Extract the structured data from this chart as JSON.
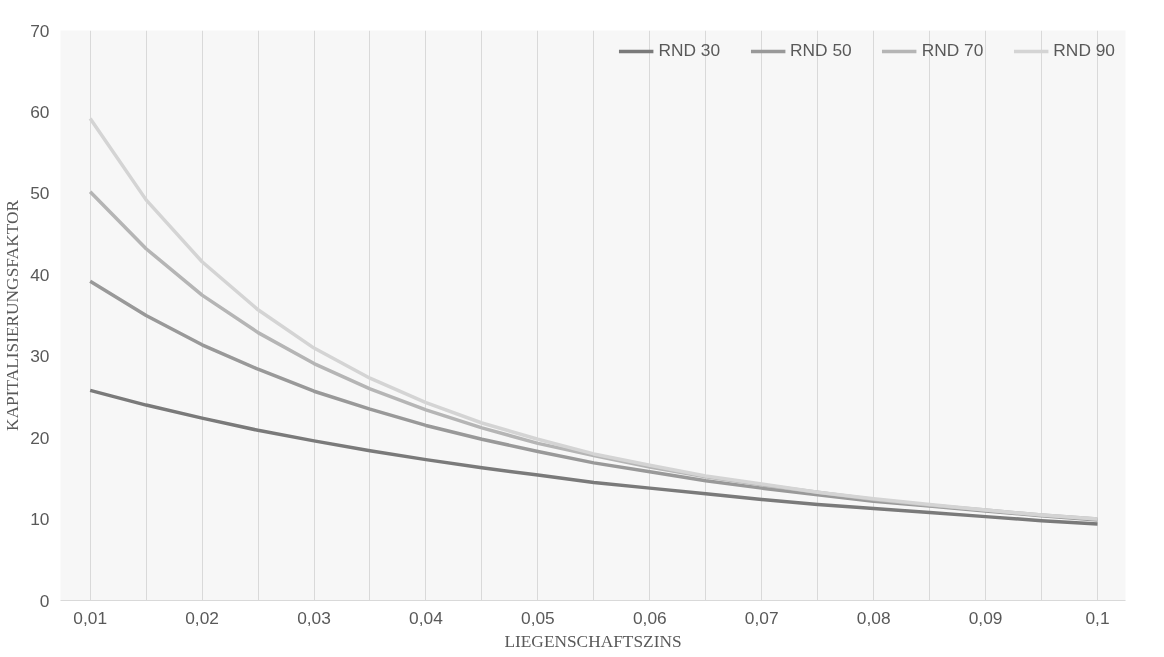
{
  "chart_data": {
    "type": "line",
    "xlabel": "LIEGENSCHAFTSZINS",
    "ylabel": "KAPITALISIERUNGSFAKTOR",
    "categories": [
      "0,01",
      null,
      "0,02",
      null,
      "0,03",
      null,
      "0,04",
      null,
      "0,05",
      null,
      "0,06",
      null,
      "0,07",
      null,
      "0,08",
      null,
      "0,09",
      null,
      "0,1"
    ],
    "series": [
      {
        "name": "RND 30",
        "color": "#7a7a7a",
        "values": [
          25.8,
          24.0,
          22.4,
          20.9,
          19.6,
          18.4,
          17.3,
          16.3,
          15.4,
          14.5,
          13.8,
          13.1,
          12.4,
          11.8,
          11.3,
          10.8,
          10.3,
          9.8,
          9.4
        ]
      },
      {
        "name": "RND 50",
        "color": "#999999",
        "values": [
          39.2,
          35.0,
          31.4,
          28.4,
          25.7,
          23.5,
          21.5,
          19.8,
          18.3,
          16.9,
          15.8,
          14.7,
          13.8,
          13.0,
          12.2,
          11.6,
          11.0,
          10.4,
          9.9
        ]
      },
      {
        "name": "RND 70",
        "color": "#b5b5b5",
        "values": [
          50.2,
          43.2,
          37.5,
          32.9,
          29.1,
          26.0,
          23.4,
          21.2,
          19.3,
          17.8,
          16.4,
          15.2,
          14.2,
          13.3,
          12.4,
          11.7,
          11.1,
          10.5,
          10.0
        ]
      },
      {
        "name": "RND 90",
        "color": "#d4d4d4",
        "values": [
          59.2,
          49.2,
          41.6,
          35.7,
          31.0,
          27.3,
          24.3,
          21.8,
          19.8,
          18.0,
          16.6,
          15.3,
          14.3,
          13.3,
          12.5,
          11.8,
          11.1,
          10.5,
          10.0
        ]
      }
    ],
    "ylim": [
      0,
      70
    ],
    "yticks": [
      0,
      10,
      20,
      30,
      40,
      50,
      60,
      70
    ],
    "grid": "x",
    "legend": "top",
    "marker": "none",
    "line_style": "solid"
  }
}
